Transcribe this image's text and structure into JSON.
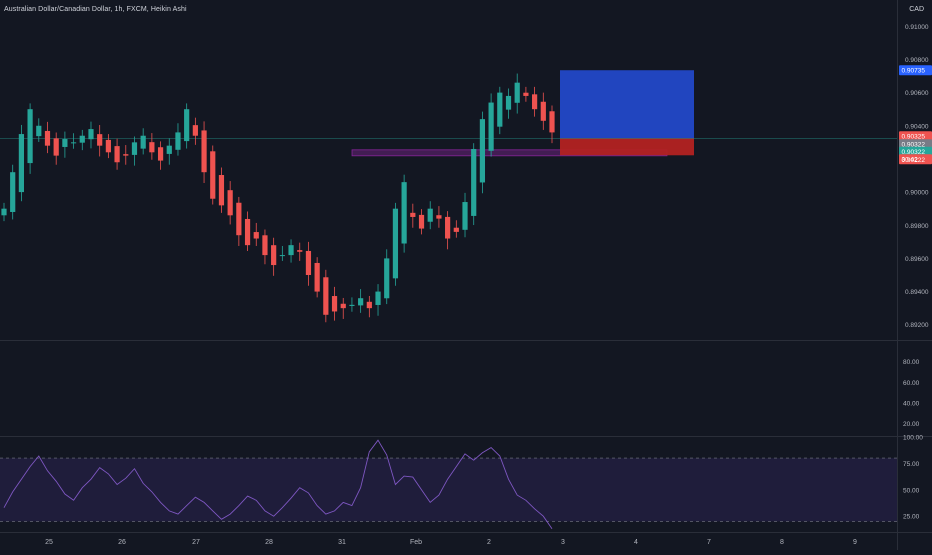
{
  "header": {
    "title": "Australian Dollar/Canadian Dollar, 1h, FXCM, Heikin Ashi",
    "currency": "CAD"
  },
  "colors": {
    "background": "#131722",
    "up": "#26a69a",
    "down": "#ef5350",
    "target_zone": "#2248c8",
    "stop_zone": "#b22222",
    "range_box": "#9c27b0",
    "rsi_line": "#7e57c2",
    "rsi_band": "#2a2350"
  },
  "chart_data": [
    {
      "type": "candlestick",
      "style": "Heikin Ashi",
      "y_tick_labels": [
        "0.91000",
        "0.90800",
        "0.90600",
        "0.90400",
        "0.90200",
        "0.90000",
        "0.89800",
        "0.89600",
        "0.89400",
        "0.89200"
      ],
      "ylim": [
        0.8912,
        0.9105
      ],
      "x_tick_labels": [
        "25",
        "26",
        "27",
        "28",
        "31",
        "Feb",
        "2",
        "3",
        "4",
        "7",
        "8",
        "9"
      ],
      "price_labels": [
        {
          "text": "0.90735",
          "value": 0.90735,
          "color": "#2962ff"
        },
        {
          "text": "0.90325",
          "value": 0.90325,
          "color": "#ef5350"
        },
        {
          "text": "0.90322",
          "value": 0.90322,
          "color": "#787b86"
        },
        {
          "text": "0.90322",
          "value": 0.90322,
          "color": "#26a69a"
        },
        {
          "text": "0.90222",
          "value": 0.90222,
          "color": "#ef5350"
        }
      ],
      "countdown": "30:42",
      "close_series": [
        0.899,
        0.9012,
        0.9035,
        0.905,
        0.904,
        0.9028,
        0.9022,
        0.9032,
        0.903,
        0.9034,
        0.9038,
        0.9028,
        0.9024,
        0.9018,
        0.9022,
        0.903,
        0.9034,
        0.9024,
        0.9019,
        0.9028,
        0.9036,
        0.905,
        0.9034,
        0.9012,
        0.8996,
        0.8992,
        0.8986,
        0.8974,
        0.8968,
        0.8972,
        0.8962,
        0.8956,
        0.8962,
        0.8968,
        0.8964,
        0.895,
        0.894,
        0.8926,
        0.8928,
        0.893,
        0.8932,
        0.8936,
        0.893,
        0.894,
        0.896,
        0.899,
        0.9006,
        0.8985,
        0.8978,
        0.899,
        0.8984,
        0.8972,
        0.8976,
        0.8994,
        0.9026,
        0.9044,
        0.9054,
        0.906,
        0.9058,
        0.9066,
        0.9058,
        0.905,
        0.9043,
        0.9036
      ]
    },
    {
      "type": "line",
      "name": "",
      "y_tick_labels": [
        "100.00",
        "75.00",
        "50.00",
        "25.00"
      ],
      "ylim": [
        10,
        100
      ],
      "band": [
        20,
        80
      ],
      "values": [
        33,
        48,
        60,
        72,
        82,
        68,
        58,
        46,
        40,
        52,
        60,
        71,
        65,
        55,
        61,
        70,
        56,
        48,
        38,
        30,
        27,
        35,
        43,
        38,
        30,
        22,
        27,
        35,
        44,
        40,
        30,
        25,
        33,
        42,
        52,
        47,
        35,
        27,
        30,
        38,
        35,
        52,
        86,
        97,
        83,
        55,
        63,
        62,
        50,
        38,
        45,
        60,
        72,
        84,
        78,
        85,
        90,
        82,
        60,
        45,
        40,
        32,
        25,
        13
      ]
    },
    {
      "type": "line",
      "name": "",
      "y_tick_labels": [
        "80.00",
        "60.00",
        "40.00",
        "20.00"
      ],
      "ylim": [
        8,
        100
      ],
      "values": []
    }
  ]
}
